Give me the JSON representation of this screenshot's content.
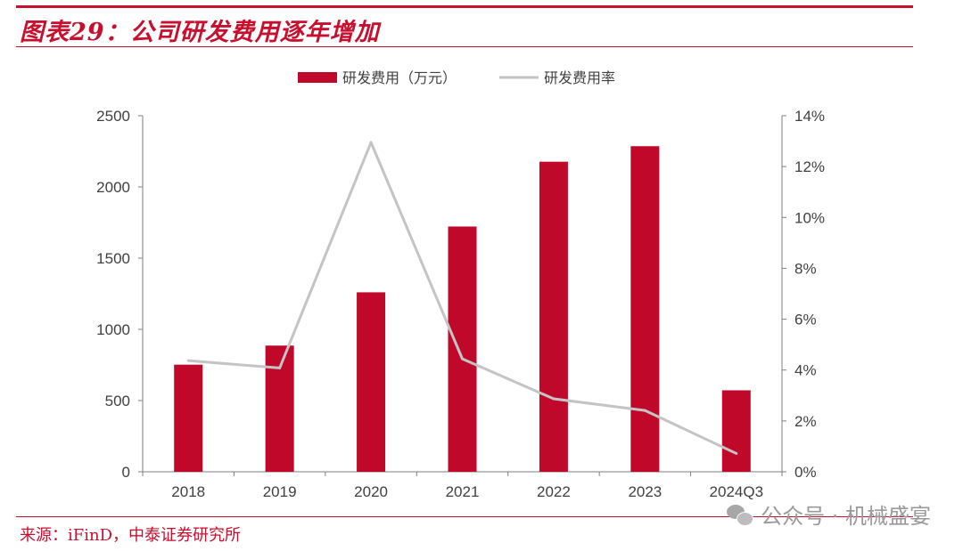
{
  "header": {
    "title": "图表29：公司研发费用逐年增加"
  },
  "footer": {
    "source": "来源：iFinD，中泰证券研究所",
    "watermark": "公众号 · 机械盛宴",
    "watermark_icon": "wechat-icon"
  },
  "colors": {
    "accent": "#c8102e",
    "bar": "#c0082b",
    "line": "#c4c4c4",
    "axis": "#7f7f7f"
  },
  "chart_data": {
    "type": "bar",
    "categories": [
      "2018",
      "2019",
      "2020",
      "2021",
      "2022",
      "2023",
      "2024Q3"
    ],
    "series": [
      {
        "name": "研发费用（万元）",
        "type": "bar",
        "axis": "left",
        "values": [
          752,
          886,
          1260,
          1722,
          2177,
          2286,
          572
        ]
      },
      {
        "name": "研发费用率",
        "type": "line",
        "axis": "right",
        "values": [
          0.0437,
          0.0408,
          0.1295,
          0.0444,
          0.0287,
          0.0241,
          0.0072
        ]
      }
    ],
    "y_left": {
      "min": 0,
      "max": 2500,
      "ticks": [
        "0",
        "500",
        "1000",
        "1500",
        "2000",
        "2500"
      ]
    },
    "y_right": {
      "min": 0,
      "max": 0.14,
      "ticks": [
        "0%",
        "2%",
        "4%",
        "6%",
        "8%",
        "10%",
        "12%",
        "14%"
      ]
    },
    "legend_position": "top-center",
    "grid": false
  }
}
